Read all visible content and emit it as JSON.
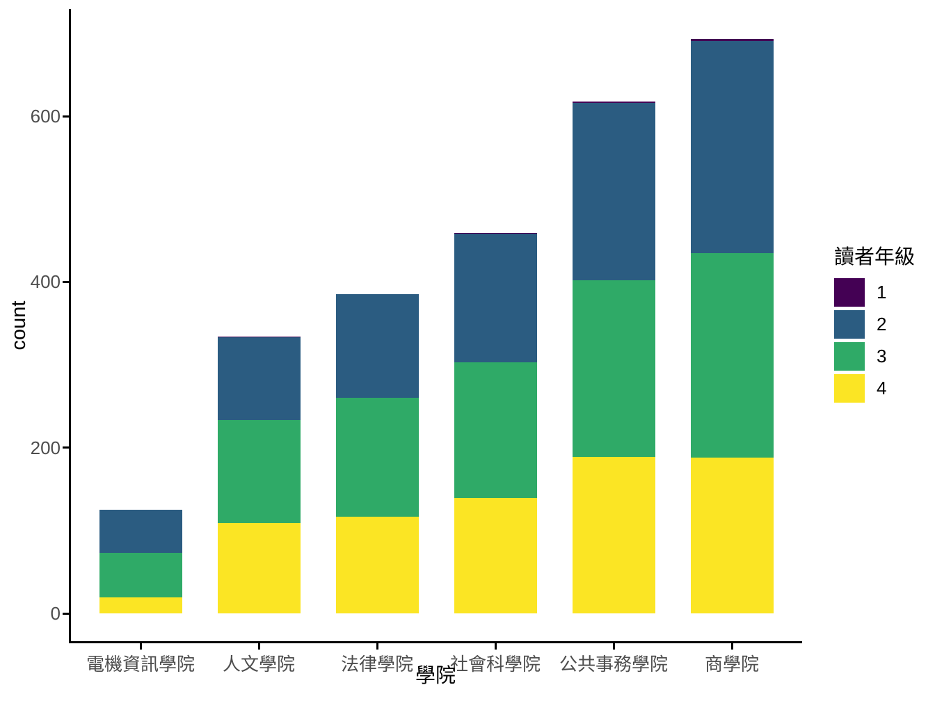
{
  "chart_data": {
    "type": "bar",
    "stacked": true,
    "title": "",
    "xlabel": "學院",
    "ylabel": "count",
    "categories": [
      "電機資訊學院",
      "人文學院",
      "法律學院",
      "社會科學院",
      "公共事務學院",
      "商學院"
    ],
    "series": [
      {
        "name": "1",
        "color": "#440154",
        "values": [
          0,
          1,
          0,
          1,
          2,
          2
        ]
      },
      {
        "name": "2",
        "color": "#2B5C81",
        "values": [
          52,
          100,
          125,
          155,
          214,
          256
        ]
      },
      {
        "name": "3",
        "color": "#2FAA67",
        "values": [
          54,
          124,
          143,
          164,
          213,
          247
        ]
      },
      {
        "name": "4",
        "color": "#FBE524",
        "values": [
          19,
          109,
          117,
          139,
          189,
          188
        ]
      }
    ],
    "totals": [
      125,
      334,
      385,
      459,
      618,
      693
    ],
    "y_ticks": [
      "0",
      "200",
      "400",
      "600"
    ],
    "y_tick_values": [
      0,
      200,
      400,
      600
    ],
    "ylim": [
      0,
      725
    ],
    "grid": false,
    "legend": {
      "title": "讀者年級",
      "labels": [
        "1",
        "2",
        "3",
        "4"
      ],
      "position": "right"
    },
    "stack_order_note": "grade 1 on top, grade 4 at bottom"
  },
  "axes": {
    "x_title": "學院",
    "y_title": "count"
  },
  "colors": {
    "background": "#ffffff",
    "axis_line": "#000000",
    "tick_label": "#4d4d4d",
    "grade1_purple": "#440154",
    "grade2_blue": "#2B5C81",
    "grade3_green": "#2FAA67",
    "grade4_yellow": "#FBE524"
  }
}
